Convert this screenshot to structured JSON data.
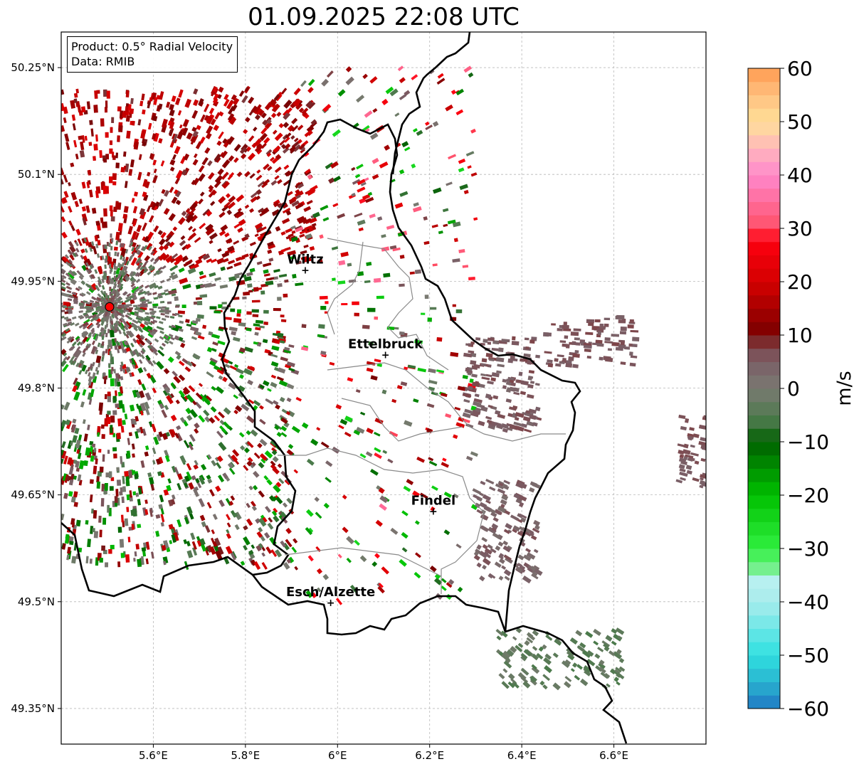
{
  "title": "01.09.2025 22:08 UTC",
  "info_box": {
    "product": "Product: 0.5° Radial Velocity",
    "data": "Data: RMIB"
  },
  "chart_data": {
    "type": "heatmap",
    "title": "01.09.2025 22:08 UTC",
    "xlabel": "",
    "ylabel": "",
    "xlim": [
      5.4,
      6.8
    ],
    "ylim": [
      49.3,
      50.3
    ],
    "x_ticks": [
      5.6,
      5.8,
      6.0,
      6.2,
      6.4,
      6.6
    ],
    "x_tick_labels": [
      "5.6°E",
      "5.8°E",
      "6°E",
      "6.2°E",
      "6.4°E",
      "6.6°E"
    ],
    "y_ticks": [
      49.35,
      49.5,
      49.65,
      49.8,
      49.95,
      50.1,
      50.25
    ],
    "y_tick_labels": [
      "49.35°N",
      "49.5°N",
      "49.65°N",
      "49.8°N",
      "49.95°N",
      "50.1°N",
      "50.25°N"
    ],
    "grid": true,
    "radar_site": {
      "lon": 5.505,
      "lat": 49.914,
      "color": "#ff0000"
    },
    "cities": [
      {
        "name": "Wiltz",
        "lon": 5.93,
        "lat": 49.966
      },
      {
        "name": "Ettelbruck",
        "lon": 6.104,
        "lat": 49.847
      },
      {
        "name": "Findel",
        "lon": 6.208,
        "lat": 49.627
      },
      {
        "name": "Esch/Alzette",
        "lon": 5.985,
        "lat": 49.499
      }
    ],
    "colorbar": {
      "label": "m/s",
      "min": -60,
      "max": 60,
      "ticks": [
        60,
        50,
        40,
        30,
        20,
        10,
        0,
        -10,
        -20,
        -30,
        -40,
        -50,
        -60
      ],
      "tick_labels": [
        "60",
        "50",
        "40",
        "30",
        "20",
        "10",
        "0",
        "−10",
        "−20",
        "−30",
        "−40",
        "−50",
        "−60"
      ],
      "stops": [
        {
          "v": -60,
          "color": "#1f77c4"
        },
        {
          "v": -55,
          "color": "#29b4d0"
        },
        {
          "v": -50,
          "color": "#2fe0e0"
        },
        {
          "v": -40,
          "color": "#a8ecec"
        },
        {
          "v": -36,
          "color": "#b8f0f0"
        },
        {
          "v": -35,
          "color": "#8cf0a8"
        },
        {
          "v": -30,
          "color": "#30f040"
        },
        {
          "v": -20,
          "color": "#00c000"
        },
        {
          "v": -10,
          "color": "#006000"
        },
        {
          "v": -6,
          "color": "#4a7a4a"
        },
        {
          "v": 0,
          "color": "#7a7a72"
        },
        {
          "v": 5,
          "color": "#7a5e66"
        },
        {
          "v": 8,
          "color": "#7e4448"
        },
        {
          "v": 10,
          "color": "#780000"
        },
        {
          "v": 20,
          "color": "#d40000"
        },
        {
          "v": 28,
          "color": "#ff0010"
        },
        {
          "v": 30,
          "color": "#ff5068"
        },
        {
          "v": 40,
          "color": "#ff88cc"
        },
        {
          "v": 45,
          "color": "#ffb6bc"
        },
        {
          "v": 50,
          "color": "#ffe098"
        },
        {
          "v": 55,
          "color": "#ffc080"
        },
        {
          "v": 60,
          "color": "#ff9a50"
        }
      ]
    },
    "echo_regions": [
      {
        "name": "northwest-receding",
        "lon": [
          5.4,
          5.95
        ],
        "lat": [
          49.97,
          50.22
        ],
        "velocity_range": [
          8,
          22
        ],
        "density": 0.55
      },
      {
        "name": "west-mixed",
        "lon": [
          5.4,
          5.9
        ],
        "lat": [
          49.55,
          49.97
        ],
        "velocity_range": [
          -20,
          22
        ],
        "density": 0.5
      },
      {
        "name": "central-scatter",
        "lon": [
          5.9,
          6.3
        ],
        "lat": [
          49.5,
          50.25
        ],
        "velocity_range": [
          -25,
          35
        ],
        "density": 0.12
      },
      {
        "name": "east-storm-north",
        "lon": [
          6.28,
          6.44
        ],
        "lat": [
          49.74,
          49.87
        ],
        "velocity_range": [
          3,
          8
        ],
        "density": 0.8
      },
      {
        "name": "east-storm-northeast",
        "lon": [
          6.45,
          6.65
        ],
        "lat": [
          49.83,
          49.9
        ],
        "velocity_range": [
          4,
          8
        ],
        "density": 0.7
      },
      {
        "name": "east-storm-south",
        "lon": [
          6.3,
          6.44
        ],
        "lat": [
          49.53,
          49.67
        ],
        "velocity_range": [
          2,
          7
        ],
        "density": 0.75
      },
      {
        "name": "far-east",
        "lon": [
          6.74,
          6.8
        ],
        "lat": [
          49.66,
          49.76
        ],
        "velocity_range": [
          4,
          8
        ],
        "density": 0.8
      },
      {
        "name": "southeast-approaching",
        "lon": [
          6.35,
          6.62
        ],
        "lat": [
          49.38,
          49.46
        ],
        "velocity_range": [
          -6,
          -1
        ],
        "density": 0.6
      }
    ]
  }
}
